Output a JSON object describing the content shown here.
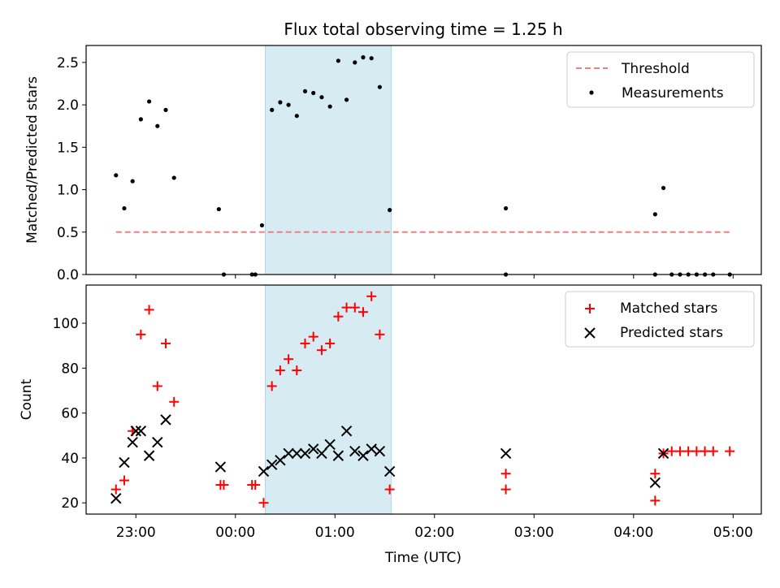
{
  "colors": {
    "shade": "#add8e6",
    "threshold": "#f08080",
    "matched": "#ff0000",
    "measurement": "#000000",
    "predicted": "#000000"
  },
  "chart_data": [
    {
      "type": "scatter",
      "title": "Flux total observing time = 1.25 h",
      "ylabel": "Matched/Predicted stars",
      "xlabel": "",
      "xlim": [
        "22:30",
        "05:17"
      ],
      "ylim": [
        0,
        2.7
      ],
      "yticks": [
        0.0,
        0.5,
        1.0,
        1.5,
        2.0,
        2.5
      ],
      "ytick_labels": [
        "0.0",
        "0.5",
        "1.0",
        "1.5",
        "2.0",
        "2.5"
      ],
      "xticks": [
        "23:00",
        "00:00",
        "01:00",
        "02:00",
        "03:00",
        "04:00",
        "05:00"
      ],
      "grid": false,
      "legend": "top-right",
      "shaded_span": {
        "start": "00:18",
        "end": "01:34"
      },
      "threshold": {
        "name": "Threshold",
        "y": 0.5,
        "x_start": "22:48",
        "x_end": "04:58",
        "style": "dashed"
      },
      "series": [
        {
          "name": "Measurements",
          "marker": "dot",
          "x": [
            "22:48",
            "22:53",
            "22:58",
            "23:03",
            "23:08",
            "23:13",
            "23:18",
            "23:23",
            "23:50",
            "23:53",
            "00:10",
            "00:12",
            "00:16",
            "00:22",
            "00:27",
            "00:32",
            "00:37",
            "00:42",
            "00:47",
            "00:52",
            "00:57",
            "01:02",
            "01:07",
            "01:12",
            "01:17",
            "01:22",
            "01:27",
            "01:33",
            "02:43",
            "02:43",
            "04:13",
            "04:13",
            "04:18",
            "04:23",
            "04:28",
            "04:33",
            "04:38",
            "04:43",
            "04:48",
            "04:58"
          ],
          "y": [
            1.17,
            0.78,
            1.1,
            1.83,
            2.04,
            1.75,
            1.94,
            1.14,
            0.77,
            0.0,
            0.0,
            0.0,
            0.58,
            1.94,
            2.03,
            2.0,
            1.87,
            2.16,
            2.14,
            2.09,
            1.98,
            2.52,
            2.06,
            2.5,
            2.56,
            2.55,
            2.21,
            0.76,
            0.78,
            0.0,
            0.71,
            0.0,
            1.02,
            0.0,
            0.0,
            0.0,
            0.0,
            0.0,
            0.0,
            0.0
          ]
        }
      ]
    },
    {
      "type": "scatter",
      "title": "",
      "ylabel": "Count",
      "xlabel": "Time (UTC)",
      "xlim": [
        "22:30",
        "05:17"
      ],
      "ylim": [
        15,
        117
      ],
      "yticks": [
        20,
        40,
        60,
        80,
        100
      ],
      "ytick_labels": [
        "20",
        "40",
        "60",
        "80",
        "100"
      ],
      "xticks": [
        "23:00",
        "00:00",
        "01:00",
        "02:00",
        "03:00",
        "04:00",
        "05:00"
      ],
      "grid": false,
      "legend": "top-right",
      "shaded_span": {
        "start": "00:18",
        "end": "01:34"
      },
      "series": [
        {
          "name": "Matched stars",
          "marker": "plus",
          "x": [
            "22:48",
            "22:53",
            "22:58",
            "23:03",
            "23:08",
            "23:13",
            "23:18",
            "23:23",
            "23:51",
            "23:53",
            "00:10",
            "00:12",
            "00:17",
            "00:22",
            "00:27",
            "00:32",
            "00:37",
            "00:42",
            "00:47",
            "00:52",
            "00:57",
            "01:02",
            "01:07",
            "01:12",
            "01:17",
            "01:22",
            "01:27",
            "01:33",
            "02:43",
            "02:43",
            "04:13",
            "04:13",
            "04:18",
            "04:23",
            "04:28",
            "04:33",
            "04:38",
            "04:43",
            "04:48",
            "04:58"
          ],
          "y": [
            26,
            30,
            52,
            95,
            106,
            72,
            91,
            65,
            28,
            28,
            28,
            28,
            20,
            72,
            79,
            84,
            79,
            91,
            94,
            88,
            91,
            103,
            107,
            107,
            105,
            112,
            95,
            26,
            26,
            33,
            21,
            33,
            42,
            43,
            43,
            43,
            43,
            43,
            43,
            43
          ]
        },
        {
          "name": "Predicted stars",
          "marker": "x",
          "x": [
            "22:48",
            "22:53",
            "22:58",
            "23:00",
            "23:03",
            "23:08",
            "23:13",
            "23:18",
            "23:51",
            "00:17",
            "00:22",
            "00:27",
            "00:32",
            "00:37",
            "00:42",
            "00:47",
            "00:52",
            "00:57",
            "01:02",
            "01:07",
            "01:12",
            "01:17",
            "01:22",
            "01:27",
            "01:33",
            "02:43",
            "04:13",
            "04:18"
          ],
          "y": [
            22,
            38,
            47,
            52,
            52,
            41,
            47,
            57,
            36,
            34,
            37,
            39,
            42,
            42,
            42,
            44,
            42,
            46,
            41,
            52,
            43,
            41,
            44,
            43,
            34,
            42,
            29,
            42
          ]
        }
      ]
    }
  ]
}
